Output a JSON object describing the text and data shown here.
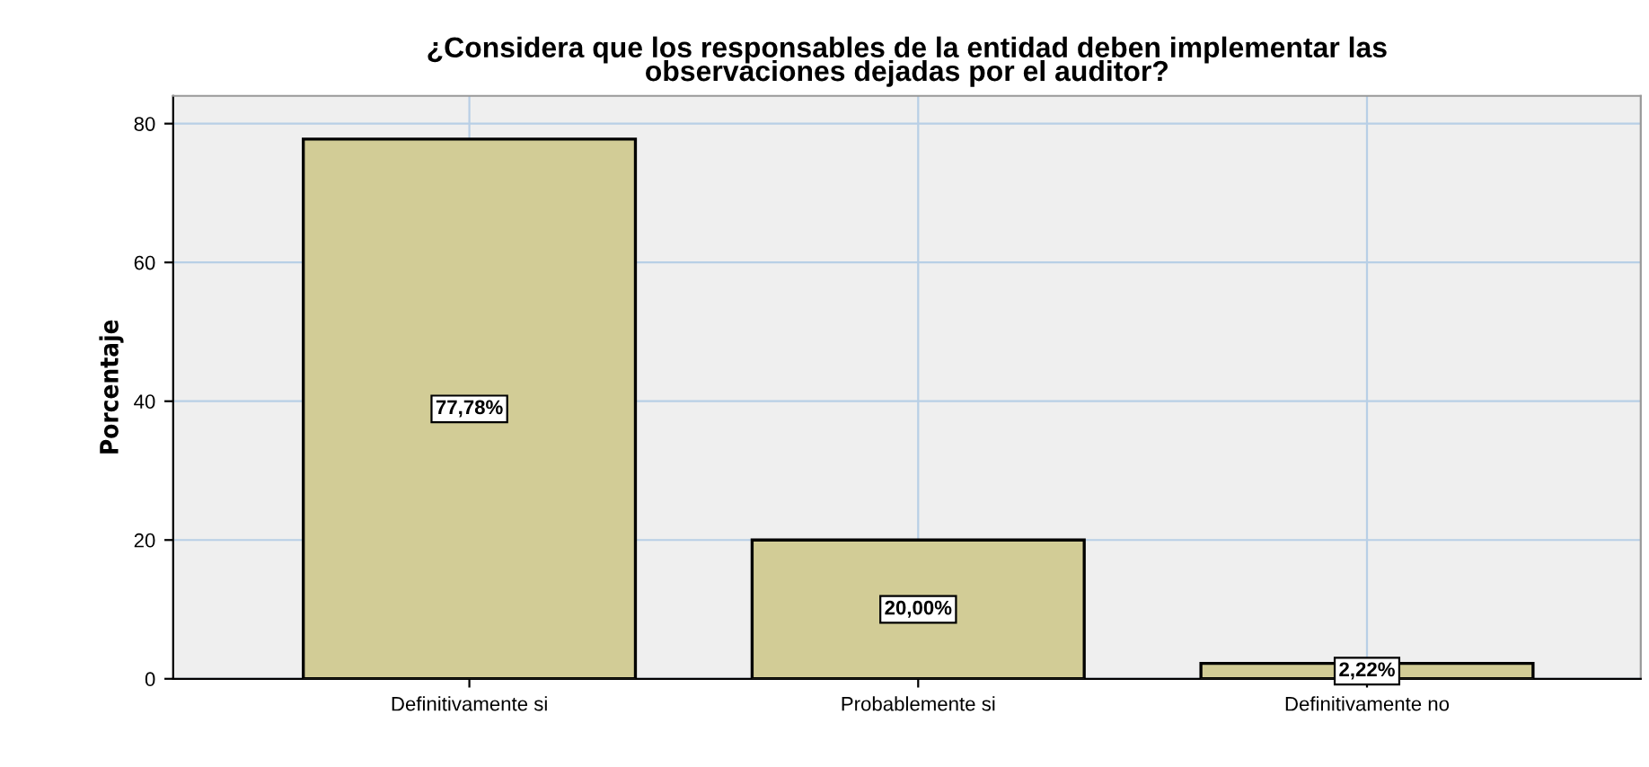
{
  "chart_data": {
    "type": "bar",
    "title": "¿Considera que los responsables de la entidad deben implementar las\nobservaciones dejadas por el auditor?",
    "ylabel": "Porcentaje",
    "categories": [
      "Definitivamente si",
      "Probablemente si",
      "Definitivamente no"
    ],
    "values": [
      77.78,
      20.0,
      2.22
    ],
    "color": "#d2cc96",
    "value_labels": [
      "77,78%",
      "20,00%",
      "2,22%"
    ],
    "ylim": [
      0,
      84
    ],
    "yticks": [
      0,
      20,
      40,
      60,
      80
    ],
    "grid": true,
    "legend": false
  }
}
